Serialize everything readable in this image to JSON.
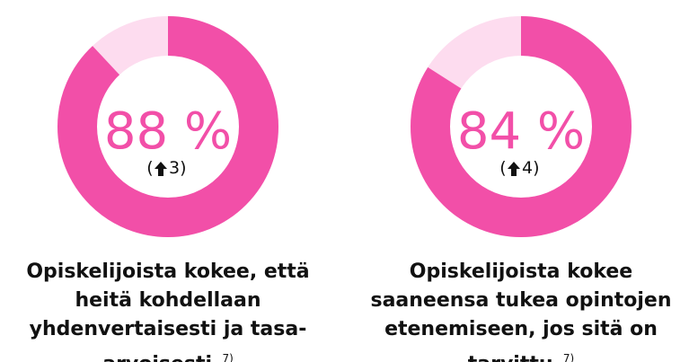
{
  "colors": {
    "accent": "#F24FA8",
    "track": "#FDDCEF",
    "text": "#111111"
  },
  "chart_data": [
    {
      "type": "pie",
      "values": [
        88,
        12
      ],
      "center_label": "88 %",
      "change_label": "3)",
      "change_direction": "up-arrow-icon",
      "paren_open": "(",
      "caption": "Opiskelijoista kokee, että heitä kohdellaan yhdenvertaisesti ja tasa-arvoisesti.",
      "footnote": "7)"
    },
    {
      "type": "pie",
      "values": [
        84,
        16
      ],
      "center_label": "84 %",
      "change_label": "4)",
      "change_direction": "up-arrow-icon",
      "paren_open": "(",
      "caption": "Opiskelijoista kokee saaneensa tukea opintojen etenemiseen, jos sitä on tarvittu.",
      "footnote": "7)"
    }
  ]
}
